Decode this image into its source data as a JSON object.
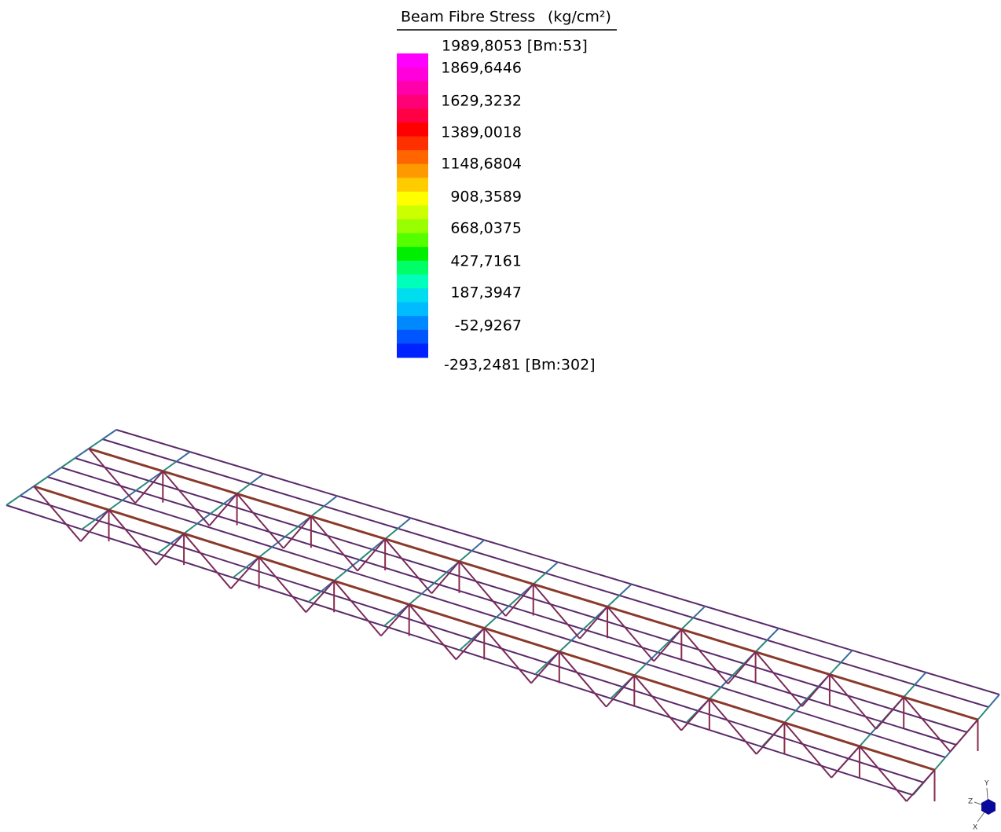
{
  "legend": {
    "title": "Beam Fibre Stress",
    "unit": "(kg/cm²)",
    "max_label": "1989,8053 [Bm:53]",
    "labels": [
      "1869,6446",
      "1629,3232",
      "1389,0018",
      "1148,6804",
      "908,3589",
      "668,0375",
      "427,7161",
      "187,3947",
      "-52,9267"
    ],
    "min_label": "-293,2481 [Bm:302]"
  },
  "triad": {
    "y": "Y",
    "z": "Z",
    "x": "X"
  }
}
